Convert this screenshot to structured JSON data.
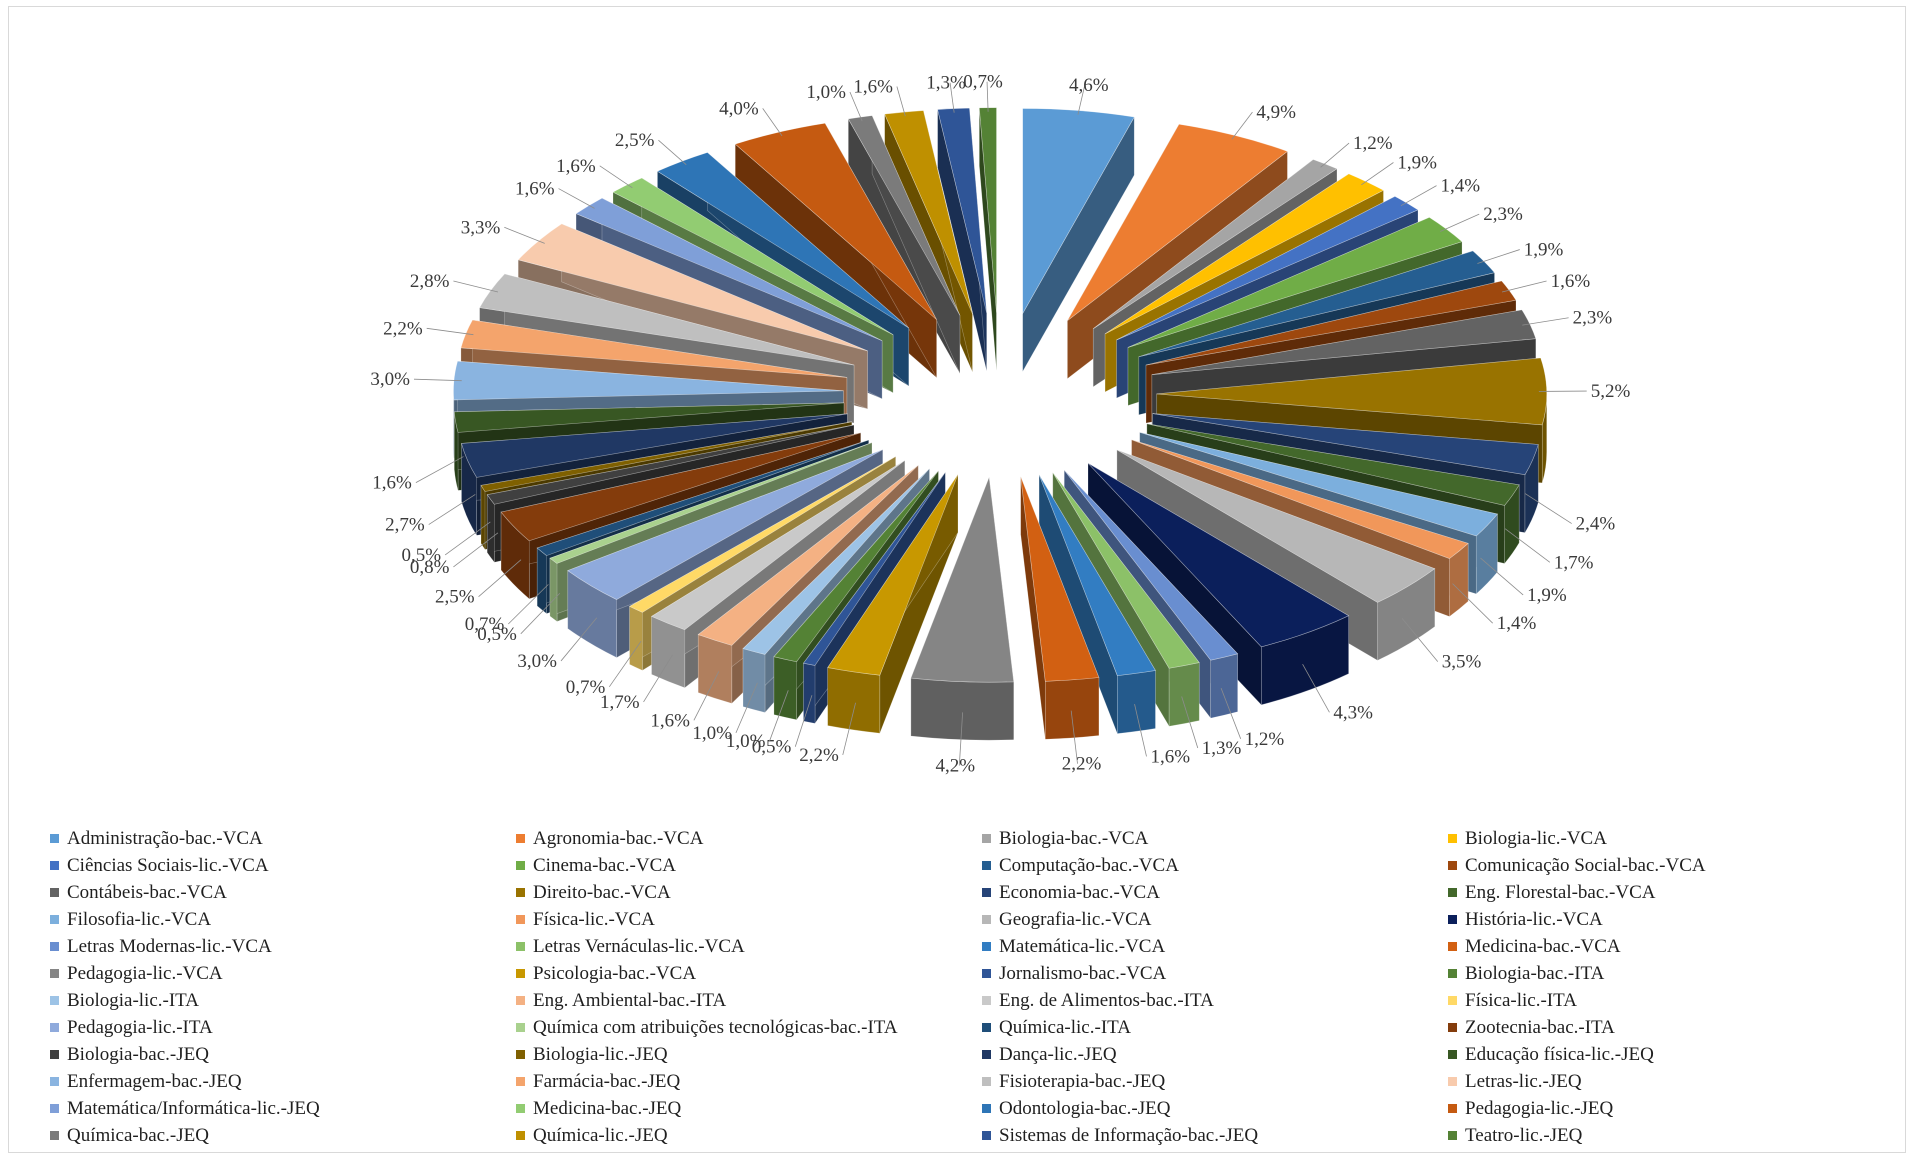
{
  "chart_data": {
    "type": "pie",
    "variant": "3d-exploded",
    "title": "",
    "legend_position": "bottom",
    "slices": [
      {
        "label": "Administração-bac.-VCA",
        "value": 4.6,
        "display": "4,6%",
        "color": "#5b9bd5"
      },
      {
        "label": "Agronomia-bac.-VCA",
        "value": 4.9,
        "display": "4,9%",
        "color": "#ed7d31"
      },
      {
        "label": "Biologia-bac.-VCA",
        "value": 1.2,
        "display": "1,2%",
        "color": "#a5a5a5"
      },
      {
        "label": "Biologia-lic.-VCA",
        "value": 1.9,
        "display": "1,9%",
        "color": "#ffc000"
      },
      {
        "label": "Ciências Sociais-lic.-VCA",
        "value": 1.4,
        "display": "1,4%",
        "color": "#4472c4"
      },
      {
        "label": "Cinema-bac.-VCA",
        "value": 2.3,
        "display": "2,3%",
        "color": "#70ad47"
      },
      {
        "label": "Computação-bac.-VCA",
        "value": 1.9,
        "display": "1,9%",
        "color": "#255e91"
      },
      {
        "label": "Comunicação Social-bac.-VCA",
        "value": 1.6,
        "display": "1,6%",
        "color": "#9e480e"
      },
      {
        "label": "Contábeis-bac.-VCA",
        "value": 2.3,
        "display": "2,3%",
        "color": "#636363"
      },
      {
        "label": "Direito-bac.-VCA",
        "value": 5.2,
        "display": "5,2%",
        "color": "#997300"
      },
      {
        "label": "Economia-bac.-VCA",
        "value": 2.4,
        "display": "2,4%",
        "color": "#264478"
      },
      {
        "label": "Eng. Florestal-bac.-VCA",
        "value": 1.7,
        "display": "1,7%",
        "color": "#43682b"
      },
      {
        "label": "Filosofia-lic.-VCA",
        "value": 1.9,
        "display": "1,9%",
        "color": "#7cafdd"
      },
      {
        "label": "Física-lic.-VCA",
        "value": 1.4,
        "display": "1,4%",
        "color": "#f1975a"
      },
      {
        "label": "Geografia-lic.-VCA",
        "value": 3.5,
        "display": "3,5%",
        "color": "#b7b7b7"
      },
      {
        "label": "História-lic.-VCA",
        "value": 4.3,
        "display": "4,3%",
        "color": "#0b1f5b"
      },
      {
        "label": "Letras Modernas-lic.-VCA",
        "value": 1.2,
        "display": "1,2%",
        "color": "#698ed0"
      },
      {
        "label": "Letras Vernáculas-lic.-VCA",
        "value": 1.3,
        "display": "1,3%",
        "color": "#8cc168"
      },
      {
        "label": "Matemática-lic.-VCA",
        "value": 1.6,
        "display": "1,6%",
        "color": "#327dc2"
      },
      {
        "label": "Medicina-bac.-VCA",
        "value": 2.2,
        "display": "2,2%",
        "color": "#d26012"
      },
      {
        "label": "Pedagogia-lic.-VCA",
        "value": 4.2,
        "display": "4,2%",
        "color": "#858585"
      },
      {
        "label": "Psicologia-bac.-VCA",
        "value": 2.2,
        "display": "2,2%",
        "color": "#c89800"
      },
      {
        "label": "Jornalismo-bac.-VCA",
        "value": 0.5,
        "display": "0,5%",
        "color": "#2f5597"
      },
      {
        "label": "Biologia-bac.-ITA",
        "value": 1.0,
        "display": "1,0%",
        "color": "#548235"
      },
      {
        "label": "Biologia-lic.-ITA",
        "value": 1.0,
        "display": "1,0%",
        "color": "#9dc3e6"
      },
      {
        "label": "Eng. Ambiental-bac.-ITA",
        "value": 1.6,
        "display": "1,6%",
        "color": "#f4b183"
      },
      {
        "label": "Eng. de Alimentos-bac.-ITA",
        "value": 1.7,
        "display": "1,7%",
        "color": "#c9c9c9"
      },
      {
        "label": "Física-lic.-ITA",
        "value": 0.7,
        "display": "0,7%",
        "color": "#ffd966"
      },
      {
        "label": "Pedagogia-lic.-ITA",
        "value": 3.0,
        "display": "3,0%",
        "color": "#8faadc"
      },
      {
        "label": "Química com atribuições tecnológicas-bac.-ITA",
        "value": 0.5,
        "display": "0,5%",
        "color": "#a9d18e"
      },
      {
        "label": "Química-lic.-ITA",
        "value": 0.7,
        "display": "0,7%",
        "color": "#1f4e79"
      },
      {
        "label": "Zootecnia-bac.-ITA",
        "value": 2.5,
        "display": "2,5%",
        "color": "#843c0c"
      },
      {
        "label": "Biologia-bac.-JEQ",
        "value": 0.8,
        "display": "0,8%",
        "color": "#404040"
      },
      {
        "label": "Biologia-lic.-JEQ",
        "value": 0.5,
        "display": "0,5%",
        "color": "#7f6000"
      },
      {
        "label": "Dança-lic.-JEQ",
        "value": 2.7,
        "display": "2,7%",
        "color": "#203864"
      },
      {
        "label": "Educação física-lic.-JEQ",
        "value": 1.6,
        "display": "1,6%",
        "color": "#385723"
      },
      {
        "label": "Enfermagem-bac.-JEQ",
        "value": 3.0,
        "display": "3,0%",
        "color": "#8ab4e0"
      },
      {
        "label": "Farmácia-bac.-JEQ",
        "value": 2.2,
        "display": "2,2%",
        "color": "#f4a46c"
      },
      {
        "label": "Fisioterapia-bac.-JEQ",
        "value": 2.8,
        "display": "2,8%",
        "color": "#bfbfbf"
      },
      {
        "label": "Letras-lic.-JEQ",
        "value": 3.3,
        "display": "3,3%",
        "color": "#f8cbad"
      },
      {
        "label": "Matemática/Informática-lic.-JEQ",
        "value": 1.6,
        "display": "1,6%",
        "color": "#7f9fd8"
      },
      {
        "label": "Medicina-bac.-JEQ",
        "value": 1.6,
        "display": "1,6%",
        "color": "#92cc72"
      },
      {
        "label": "Odontologia-bac.-JEQ",
        "value": 2.5,
        "display": "2,5%",
        "color": "#2e75b6"
      },
      {
        "label": "Pedagogia-lic.-JEQ",
        "value": 4.0,
        "display": "4,0%",
        "color": "#c55a11"
      },
      {
        "label": "Química-bac.-JEQ",
        "value": 1.0,
        "display": "1,0%",
        "color": "#7b7b7b"
      },
      {
        "label": "Química-lic.-JEQ",
        "value": 1.6,
        "display": "1,6%",
        "color": "#bf9000"
      },
      {
        "label": "Sistemas de Informação-bac.-JEQ",
        "value": 1.3,
        "display": "1,3%",
        "color": "#2f5597"
      },
      {
        "label": "Teatro-lic.-JEQ",
        "value": 0.7,
        "display": "0,7%",
        "color": "#548235"
      }
    ]
  }
}
